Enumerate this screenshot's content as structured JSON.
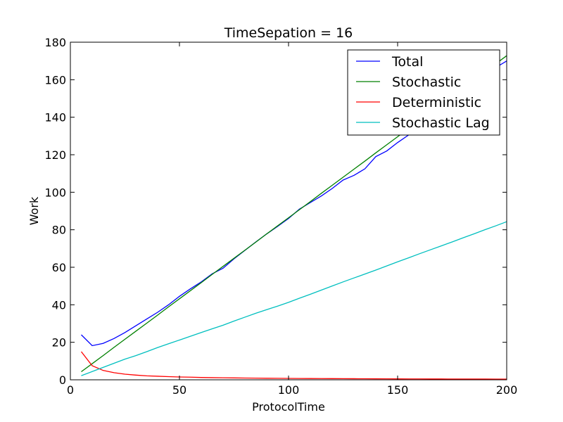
{
  "chart_data": {
    "type": "line",
    "title": "TimeSepation = 16",
    "xlabel": "ProtocolTime",
    "ylabel": "Work",
    "xlim": [
      0,
      200
    ],
    "ylim": [
      0,
      180
    ],
    "xticks": [
      0,
      50,
      100,
      150,
      200
    ],
    "yticks": [
      0,
      20,
      40,
      60,
      80,
      100,
      120,
      140,
      160,
      180
    ],
    "grid": false,
    "legend_position": "top-right",
    "series": [
      {
        "name": "Total",
        "color": "#0000ff",
        "x": [
          5,
          10,
          15,
          20,
          25,
          30,
          35,
          40,
          45,
          50,
          55,
          60,
          65,
          70,
          75,
          80,
          85,
          90,
          95,
          100,
          105,
          110,
          115,
          120,
          125,
          130,
          135,
          140,
          145,
          150,
          155,
          160,
          165,
          170,
          175,
          180,
          185,
          190,
          195,
          200
        ],
        "y": [
          24,
          18.2,
          19.4,
          22,
          25.2,
          28.8,
          32.4,
          36,
          40,
          44.5,
          48.5,
          52.2,
          56.5,
          59.5,
          64.5,
          69,
          73.5,
          77.8,
          81.8,
          86,
          91,
          94.5,
          98,
          102,
          106.5,
          109,
          112.5,
          119,
          122,
          126.5,
          130.5,
          135,
          139.5,
          144,
          148.5,
          153,
          157.5,
          162,
          166.5,
          170
        ]
      },
      {
        "name": "Stochastic",
        "color": "#008000",
        "x": [
          5,
          10,
          15,
          20,
          25,
          30,
          35,
          40,
          45,
          50,
          55,
          60,
          65,
          70,
          75,
          80,
          85,
          90,
          95,
          100,
          105,
          110,
          115,
          120,
          125,
          130,
          135,
          140,
          145,
          150,
          155,
          160,
          165,
          170,
          175,
          180,
          185,
          190,
          195,
          200
        ],
        "y": [
          4.3,
          8.6,
          12.9,
          17.3,
          21.6,
          25.9,
          30.2,
          34.5,
          38.9,
          43.2,
          47.5,
          51.8,
          56.2,
          60.5,
          64.8,
          69.1,
          73.4,
          77.8,
          82.1,
          86.4,
          90.7,
          95,
          99.4,
          103.7,
          108,
          112.3,
          116.6,
          121,
          125.3,
          129.6,
          133.9,
          138.2,
          142.6,
          146.9,
          151.2,
          155.5,
          159.8,
          164.2,
          168.5,
          172.8
        ]
      },
      {
        "name": "Deterministic",
        "color": "#ff0000",
        "x": [
          5,
          10,
          15,
          20,
          25,
          30,
          35,
          40,
          45,
          50,
          55,
          60,
          65,
          70,
          75,
          80,
          85,
          90,
          95,
          100,
          105,
          110,
          115,
          120,
          125,
          130,
          135,
          140,
          145,
          150,
          155,
          160,
          165,
          170,
          175,
          180,
          185,
          190,
          195,
          200
        ],
        "y": [
          15,
          7.5,
          5,
          3.8,
          3,
          2.5,
          2.1,
          1.9,
          1.7,
          1.5,
          1.4,
          1.25,
          1.15,
          1.07,
          1,
          0.94,
          0.88,
          0.83,
          0.79,
          0.75,
          0.71,
          0.68,
          0.65,
          0.63,
          0.6,
          0.58,
          0.56,
          0.54,
          0.52,
          0.5,
          0.48,
          0.47,
          0.45,
          0.44,
          0.43,
          0.42,
          0.41,
          0.39,
          0.38,
          0.38
        ]
      },
      {
        "name": "Stochastic Lag",
        "color": "#00bfbf",
        "x": [
          5,
          10,
          15,
          20,
          25,
          30,
          35,
          40,
          45,
          50,
          55,
          60,
          65,
          70,
          75,
          80,
          85,
          90,
          95,
          100,
          105,
          110,
          115,
          120,
          125,
          130,
          135,
          140,
          145,
          150,
          155,
          160,
          165,
          170,
          175,
          180,
          185,
          190,
          195,
          200
        ],
        "y": [
          2.2,
          4.4,
          6.6,
          8.8,
          11,
          12.9,
          15,
          17.2,
          19.2,
          21.2,
          23.2,
          25.2,
          27.2,
          29.1,
          31.3,
          33.4,
          35.5,
          37.4,
          39.3,
          41.3,
          43.5,
          45.6,
          47.8,
          50,
          52.2,
          54.3,
          56.4,
          58.5,
          60.7,
          62.9,
          65,
          67.2,
          69.3,
          71.4,
          73.5,
          75.7,
          77.8,
          80,
          82.1,
          84.3
        ]
      }
    ]
  }
}
